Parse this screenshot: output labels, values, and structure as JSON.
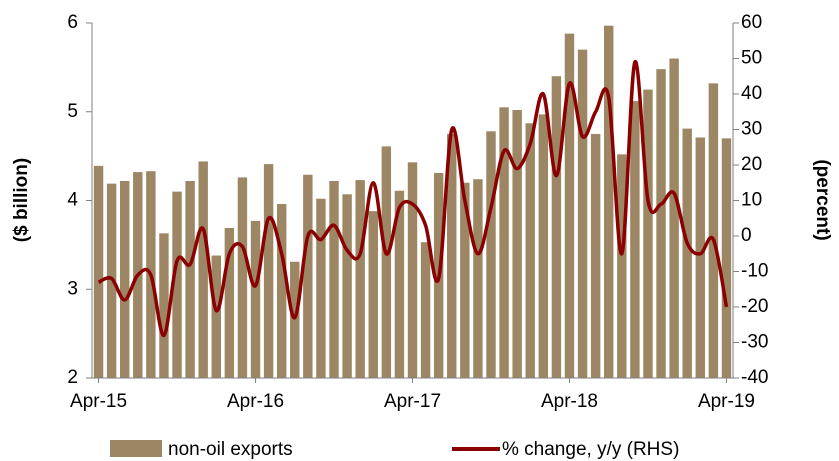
{
  "chart_data": {
    "type": "bar_line",
    "categories": [
      "Apr-15",
      null,
      null,
      null,
      null,
      null,
      null,
      null,
      null,
      null,
      null,
      null,
      "Apr-16",
      null,
      null,
      null,
      null,
      null,
      null,
      null,
      null,
      null,
      null,
      null,
      "Apr-17",
      null,
      null,
      null,
      null,
      null,
      null,
      null,
      null,
      null,
      null,
      null,
      "Apr-18",
      null,
      null,
      null,
      null,
      null,
      null,
      null,
      null,
      null,
      null,
      null,
      "Apr-19"
    ],
    "series": [
      {
        "name": "non-oil exports",
        "color": "#9c8663",
        "values": [
          4.39,
          4.19,
          4.22,
          4.32,
          4.33,
          3.63,
          4.1,
          4.22,
          4.44,
          3.38,
          3.69,
          4.26,
          3.77,
          4.41,
          3.96,
          3.31,
          4.29,
          4.02,
          4.22,
          4.07,
          4.23,
          3.88,
          4.61,
          4.11,
          4.43,
          3.53,
          4.31,
          4.75,
          4.2,
          4.24,
          4.78,
          5.05,
          5.02,
          4.87,
          4.97,
          5.4,
          5.88,
          5.7,
          4.75,
          5.97,
          4.52,
          5.12,
          5.25,
          5.48,
          5.6,
          4.81,
          4.71,
          5.32,
          4.7
        ]
      },
      {
        "name": "% change, y/y (RHS)",
        "color": "#8b0000",
        "axis": "y2",
        "values": [
          -13,
          -12,
          -18,
          -11,
          -11,
          -28,
          -7,
          -8,
          2,
          -21,
          -5,
          -3,
          -14,
          5,
          -5,
          -23,
          0,
          -1,
          3,
          -4,
          -5,
          15,
          -5,
          8,
          9,
          3,
          -12,
          30,
          10,
          -5,
          8,
          24,
          19,
          26,
          40,
          17,
          43,
          28,
          35,
          39,
          -5,
          49,
          10,
          9,
          12,
          -2,
          -5,
          -1,
          -20
        ]
      }
    ],
    "ylabel": "($ billion)",
    "y2label": "(percent)",
    "ylim": [
      2,
      6
    ],
    "yticks": [
      2,
      3,
      4,
      5,
      6
    ],
    "y2lim": [
      -40,
      60
    ],
    "y2ticks": [
      -40,
      -30,
      -20,
      -10,
      0,
      10,
      20,
      30,
      40,
      50,
      60
    ]
  }
}
